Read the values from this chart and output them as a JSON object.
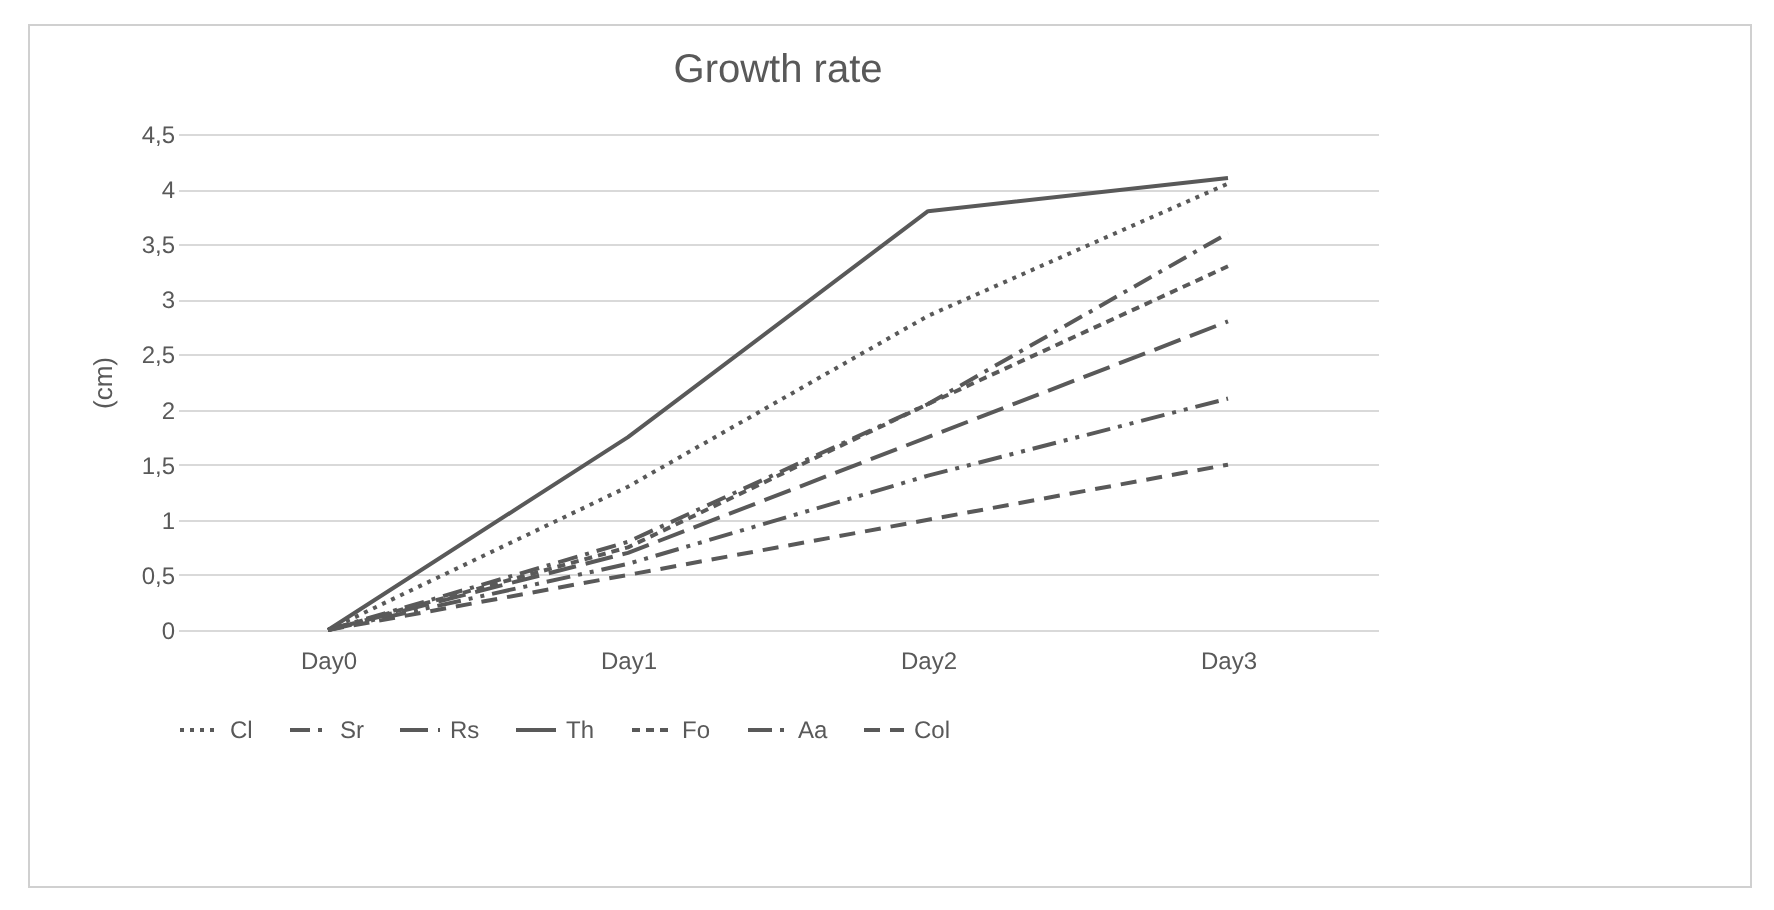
{
  "chart_data": {
    "type": "line",
    "title": "Growth rate",
    "ylabel": "(cm)",
    "categories": [
      "Day0",
      "Day1",
      "Day2",
      "Day3"
    ],
    "series": [
      {
        "name": "Cl",
        "color": "#595959",
        "line_style": "dotted",
        "values": [
          0,
          1.3,
          2.85,
          4.05
        ]
      },
      {
        "name": "Sr",
        "color": "#595959",
        "line_style": "dashed",
        "values": [
          0,
          0.8,
          2.05,
          3.6
        ]
      },
      {
        "name": "Rs",
        "color": "#595959",
        "line_style": "dashed",
        "values": [
          0,
          0.7,
          1.75,
          2.8
        ]
      },
      {
        "name": "Th",
        "color": "#595959",
        "line_style": "solid",
        "values": [
          0,
          1.75,
          3.8,
          4.1
        ]
      },
      {
        "name": "Fo",
        "color": "#595959",
        "line_style": "dashed",
        "values": [
          0,
          0.75,
          2.05,
          3.3
        ]
      },
      {
        "name": "Aa",
        "color": "#595959",
        "line_style": "dashed",
        "values": [
          0,
          0.6,
          1.4,
          2.1
        ]
      },
      {
        "name": "Col",
        "color": "#595959",
        "line_style": "dashed",
        "values": [
          0,
          0.5,
          1.0,
          1.5
        ]
      }
    ],
    "ylim": [
      0,
      4.5
    ],
    "yticks": [
      0,
      {
        "value": 0.5,
        "label": "0,5"
      },
      1,
      {
        "value": 1.5,
        "label": "1,5"
      },
      2,
      {
        "value": 2.5,
        "label": "2,5"
      },
      3,
      {
        "value": 3.5,
        "label": "3,5"
      },
      4,
      {
        "value": 4.5,
        "label": "4,5"
      }
    ],
    "grid": "y",
    "legend": "bottom",
    "marker": "none"
  }
}
